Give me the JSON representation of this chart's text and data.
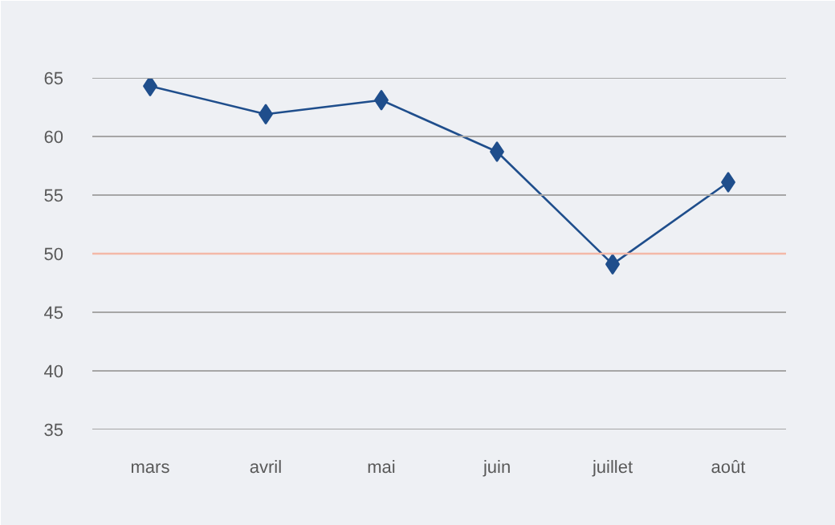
{
  "chart_data": {
    "type": "line",
    "categories": [
      "mars",
      "avril",
      "mai",
      "juin",
      "juillet",
      "août"
    ],
    "series": [
      {
        "color": "#1f4e8c",
        "values": [
          64.3,
          61.9,
          63.1,
          58.7,
          49.1,
          56.1
        ]
      }
    ],
    "ylim": [
      35,
      65
    ],
    "yticks": [
      35,
      40,
      45,
      50,
      55,
      60,
      65
    ],
    "grid": "y",
    "marker": "diamond",
    "line_style": "solid",
    "ref_lines": [
      {
        "axis": "y",
        "value": 50,
        "color": "#f4b8a8"
      }
    ]
  }
}
